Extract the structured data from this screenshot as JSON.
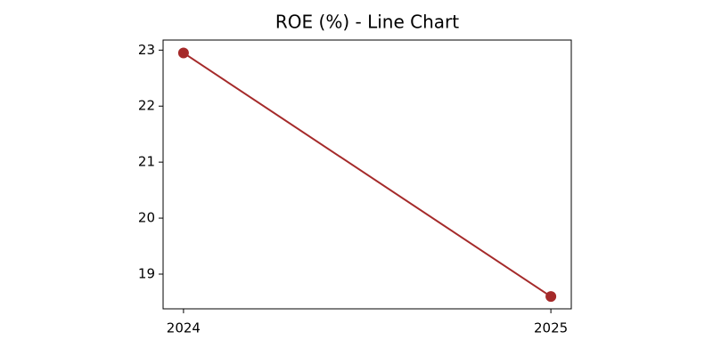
{
  "chart_data": {
    "type": "line",
    "title": "ROE (%) - Line Chart",
    "categories": [
      "2024",
      "2025"
    ],
    "series": [
      {
        "name": "ROE",
        "color": "#a52a2a",
        "values": [
          22.95,
          18.6
        ]
      }
    ],
    "ylim": [
      18.38,
      23.18
    ],
    "yticks": [
      19,
      20,
      21,
      22,
      23
    ],
    "grid": false
  }
}
